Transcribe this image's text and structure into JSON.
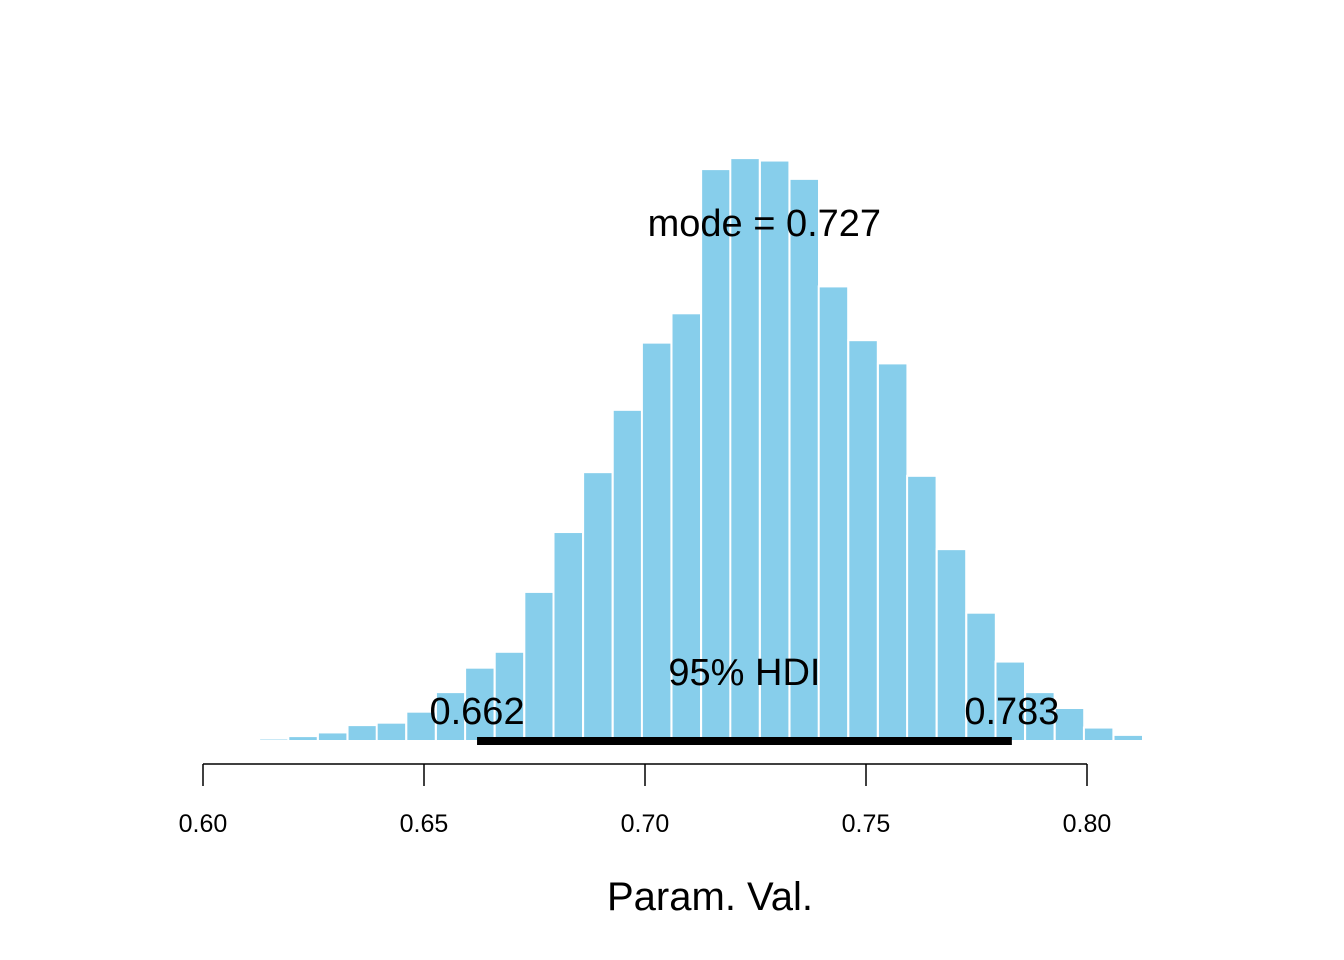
{
  "chart_data": {
    "type": "bar",
    "histogram": true,
    "xlabel": "Param. Val.",
    "xlim": [
      0.6,
      0.8
    ],
    "xticks": [
      "0.60",
      "0.65",
      "0.70",
      "0.75",
      "0.80"
    ],
    "bin_width": 0.00667,
    "bins": [
      {
        "x0": 0.6127,
        "value": 0.2
      },
      {
        "x0": 0.6193,
        "value": 0.4
      },
      {
        "x0": 0.626,
        "value": 0.7
      },
      {
        "x0": 0.6327,
        "value": 1.3
      },
      {
        "x0": 0.6393,
        "value": 1.5
      },
      {
        "x0": 0.646,
        "value": 2.4
      },
      {
        "x0": 0.6527,
        "value": 4.0
      },
      {
        "x0": 0.6593,
        "value": 6.0
      },
      {
        "x0": 0.666,
        "value": 7.3
      },
      {
        "x0": 0.6727,
        "value": 12.2
      },
      {
        "x0": 0.6793,
        "value": 17.1
      },
      {
        "x0": 0.686,
        "value": 22.0
      },
      {
        "x0": 0.6927,
        "value": 27.1
      },
      {
        "x0": 0.6993,
        "value": 32.6
      },
      {
        "x0": 0.706,
        "value": 35.0
      },
      {
        "x0": 0.7127,
        "value": 46.8
      },
      {
        "x0": 0.7193,
        "value": 47.7
      },
      {
        "x0": 0.726,
        "value": 47.5
      },
      {
        "x0": 0.7327,
        "value": 46.0
      },
      {
        "x0": 0.7393,
        "value": 37.2
      },
      {
        "x0": 0.746,
        "value": 32.8
      },
      {
        "x0": 0.7527,
        "value": 30.9
      },
      {
        "x0": 0.7593,
        "value": 21.7
      },
      {
        "x0": 0.766,
        "value": 15.7
      },
      {
        "x0": 0.7727,
        "value": 10.5
      },
      {
        "x0": 0.7793,
        "value": 6.5
      },
      {
        "x0": 0.786,
        "value": 4.0
      },
      {
        "x0": 0.7927,
        "value": 2.7
      },
      {
        "x0": 0.7993,
        "value": 1.1
      },
      {
        "x0": 0.806,
        "value": 0.5
      }
    ],
    "ylim": [
      0,
      50
    ],
    "bar_color": "#87ceeb",
    "mode_label": "mode = 0.727",
    "hdi": {
      "label": "95% HDI",
      "low": 0.662,
      "high": 0.783,
      "low_label": "0.662",
      "high_label": "0.783",
      "color": "#000000"
    },
    "grid": false,
    "legend": "none"
  }
}
